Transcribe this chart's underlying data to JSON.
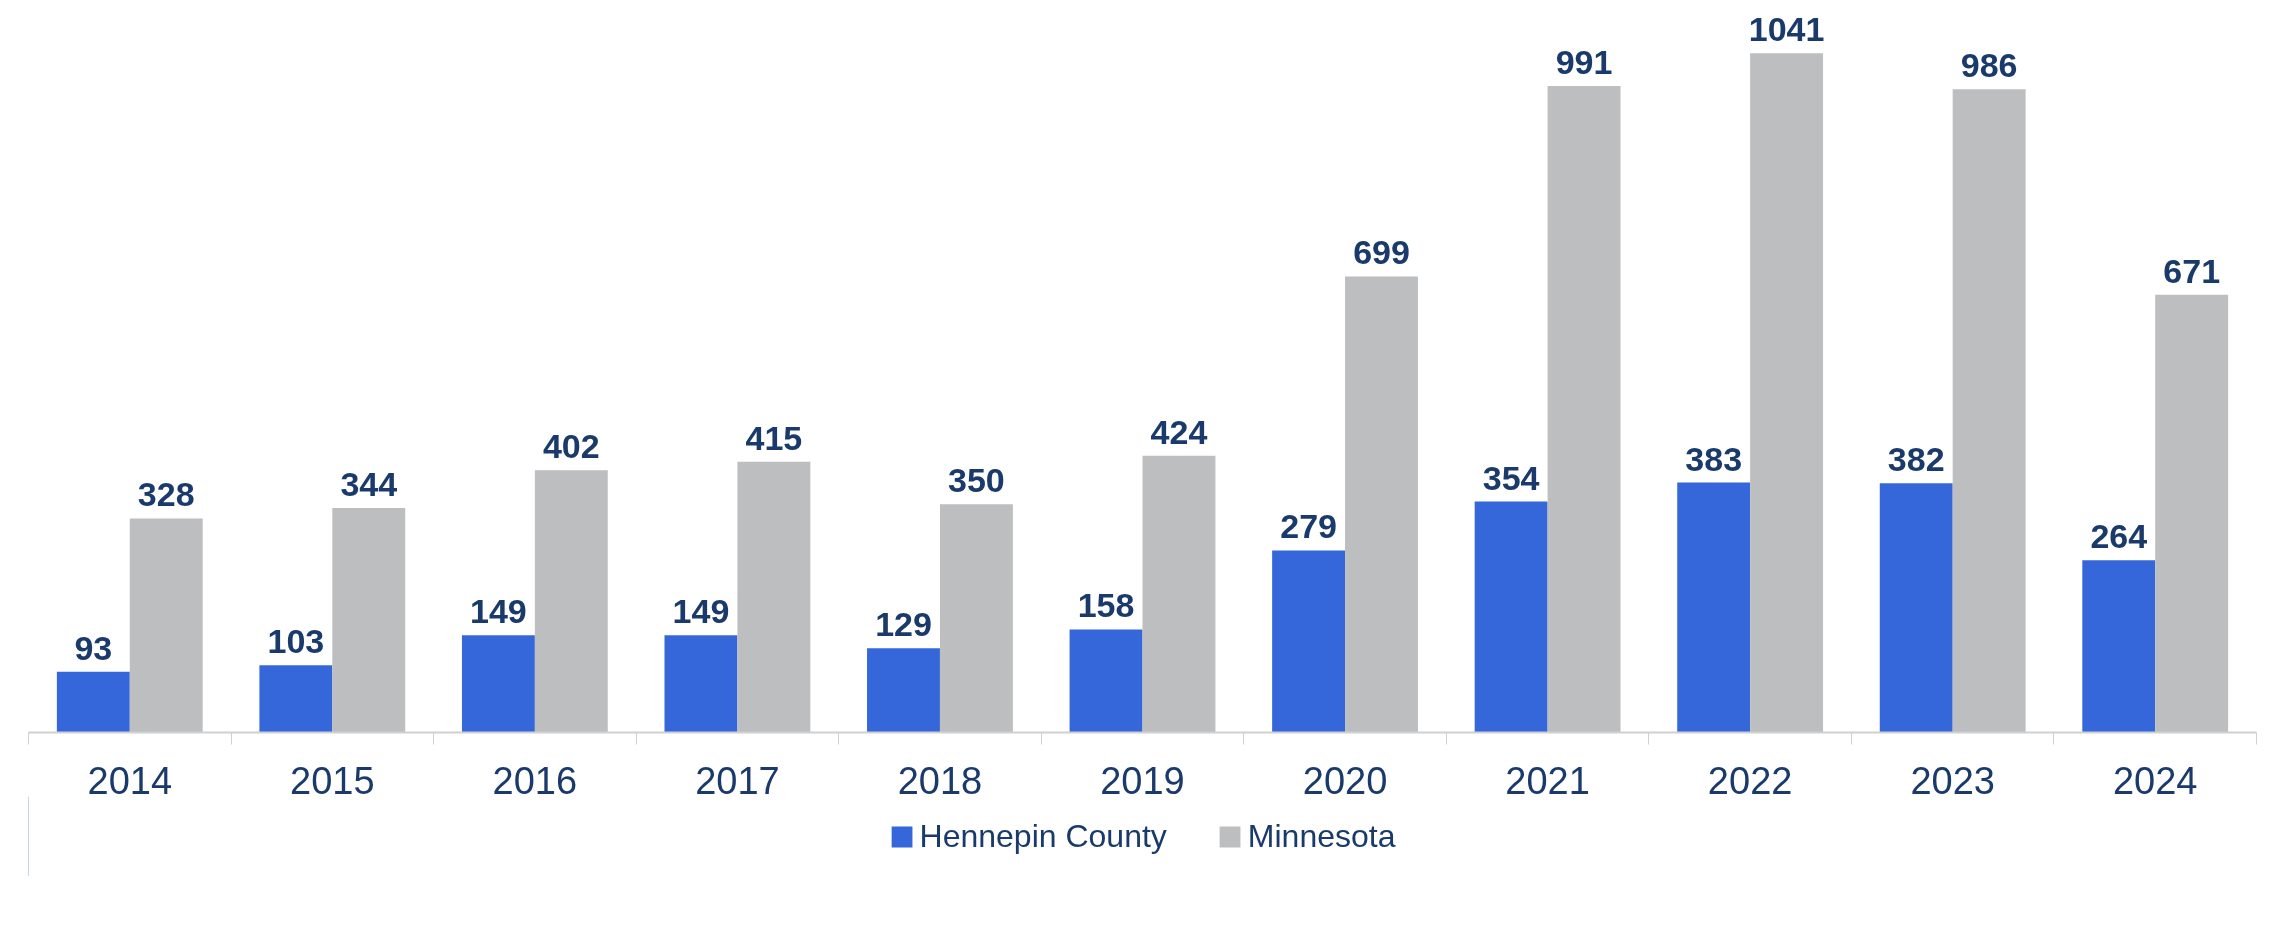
{
  "chart_data": {
    "type": "bar",
    "categories": [
      "2014",
      "2015",
      "2016",
      "2017",
      "2018",
      "2019",
      "2020",
      "2021",
      "2022",
      "2023",
      "2024"
    ],
    "series": [
      {
        "name": "Hennepin County",
        "color": "#3567db",
        "values": [
          93,
          103,
          149,
          149,
          129,
          158,
          279,
          354,
          383,
          382,
          264
        ]
      },
      {
        "name": "Minnesota",
        "color": "#bdbec0",
        "values": [
          328,
          344,
          402,
          415,
          350,
          424,
          699,
          991,
          1041,
          986,
          671
        ]
      }
    ],
    "data_labels": true,
    "grid": false,
    "legend": "bottom",
    "tick_labels": "x"
  }
}
